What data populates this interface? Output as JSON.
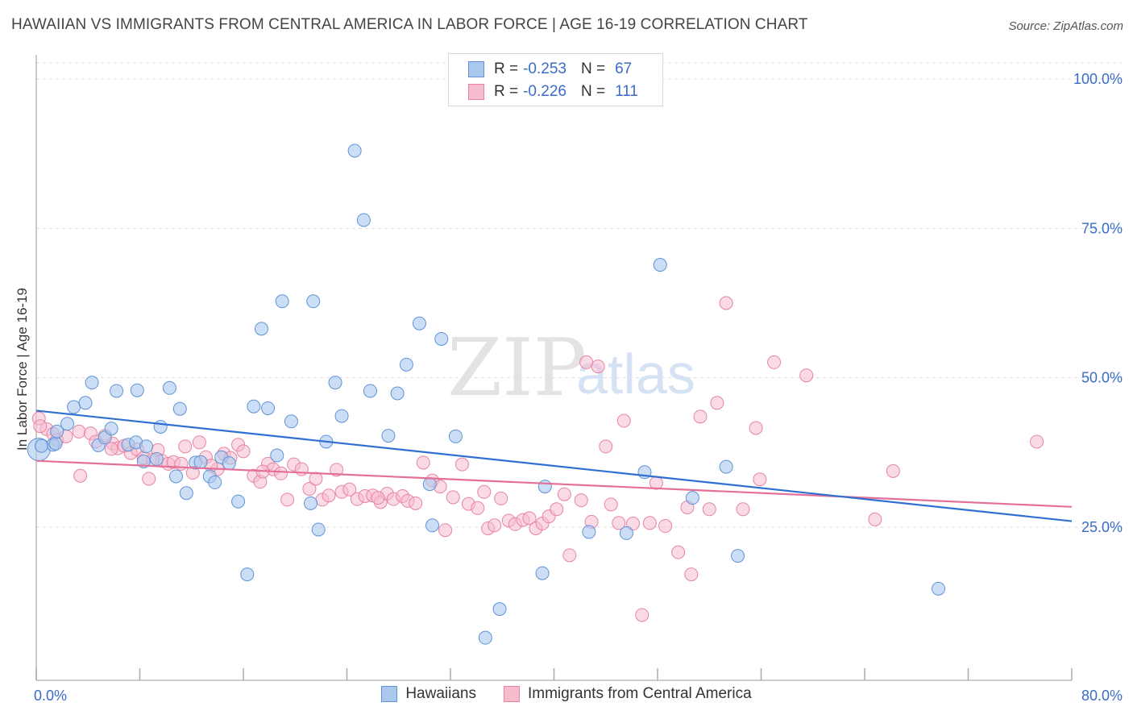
{
  "title": "HAWAIIAN VS IMMIGRANTS FROM CENTRAL AMERICA IN LABOR FORCE | AGE 16-19 CORRELATION CHART",
  "source": "Source: ZipAtlas.com",
  "watermark": {
    "part1": "ZIP",
    "part2": "atlas"
  },
  "legend": {
    "rows": [
      {
        "r_label": "R =",
        "r_value": "-0.253",
        "n_label": "N =",
        "n_value": "67"
      },
      {
        "r_label": "R =",
        "r_value": "-0.226",
        "n_label": "N =",
        "n_value": "111"
      }
    ]
  },
  "bottom_legend": {
    "series1": "Hawaiians",
    "series2": "Immigrants from Central America"
  },
  "chart_data": {
    "type": "scatter",
    "ylabel": "In Labor Force | Age 16-19",
    "xlabel": "",
    "xlim": [
      0,
      80
    ],
    "ylim": [
      0,
      105
    ],
    "x_tick_labels": [
      "0.0%",
      "80.0%"
    ],
    "y_tick_values": [
      25,
      50,
      75,
      100
    ],
    "y_tick_labels": [
      "25.0%",
      "50.0%",
      "75.0%",
      "100.0%"
    ],
    "grid": true,
    "legend_position": "top-center",
    "colors": {
      "s1_fill": "#aac8ee",
      "s1_stroke": "#5f93d6",
      "s1_line": "#2e6fd1",
      "s2_fill": "#f6bccd",
      "s2_stroke": "#e8849f",
      "s2_line": "#e4709a",
      "tick_label": "#3a6cc7",
      "grid": "#dcdcdc"
    },
    "series": [
      {
        "name": "Hawaiians",
        "trend": {
          "x1": 0,
          "y1": 44.5,
          "x2": 80,
          "y2": 26.0
        },
        "points": [
          [
            0.2,
            38.0
          ],
          [
            1.3,
            38.8
          ],
          [
            1.5,
            39.0
          ],
          [
            1.6,
            41.0
          ],
          [
            2.4,
            42.3
          ],
          [
            2.9,
            45.1
          ],
          [
            3.8,
            45.8
          ],
          [
            4.3,
            49.2
          ],
          [
            4.8,
            38.7
          ],
          [
            5.3,
            40.0
          ],
          [
            5.8,
            41.5
          ],
          [
            6.2,
            47.8
          ],
          [
            7.1,
            38.8
          ],
          [
            7.7,
            39.2
          ],
          [
            7.8,
            47.9
          ],
          [
            8.3,
            36.0
          ],
          [
            8.5,
            38.5
          ],
          [
            9.3,
            36.4
          ],
          [
            9.6,
            41.8
          ],
          [
            10.3,
            48.3
          ],
          [
            10.8,
            33.5
          ],
          [
            11.1,
            44.8
          ],
          [
            11.6,
            30.7
          ],
          [
            12.3,
            35.8
          ],
          [
            12.7,
            35.9
          ],
          [
            13.4,
            33.5
          ],
          [
            13.8,
            32.5
          ],
          [
            14.3,
            36.7
          ],
          [
            14.9,
            35.7
          ],
          [
            15.6,
            29.3
          ],
          [
            16.3,
            17.1
          ],
          [
            16.8,
            45.2
          ],
          [
            17.4,
            58.2
          ],
          [
            17.9,
            44.9
          ],
          [
            18.6,
            37.0
          ],
          [
            19.0,
            62.8
          ],
          [
            19.7,
            42.7
          ],
          [
            21.4,
            62.8
          ],
          [
            21.2,
            29.0
          ],
          [
            21.8,
            24.6
          ],
          [
            22.4,
            39.3
          ],
          [
            23.1,
            49.2
          ],
          [
            23.6,
            43.6
          ],
          [
            24.6,
            88.0
          ],
          [
            25.3,
            76.4
          ],
          [
            25.8,
            47.8
          ],
          [
            27.2,
            40.3
          ],
          [
            27.9,
            47.4
          ],
          [
            28.6,
            52.2
          ],
          [
            29.6,
            59.1
          ],
          [
            30.4,
            32.2
          ],
          [
            30.6,
            25.3
          ],
          [
            31.3,
            56.5
          ],
          [
            32.4,
            40.2
          ],
          [
            34.7,
            6.5
          ],
          [
            35.8,
            11.3
          ],
          [
            39.1,
            17.3
          ],
          [
            39.3,
            31.8
          ],
          [
            42.7,
            24.2
          ],
          [
            45.6,
            24.0
          ],
          [
            47.0,
            34.2
          ],
          [
            48.2,
            68.9
          ],
          [
            50.7,
            29.9
          ],
          [
            53.3,
            35.1
          ],
          [
            54.2,
            20.2
          ],
          [
            69.7,
            14.7
          ],
          [
            0.4,
            38.6
          ]
        ]
      },
      {
        "name": "Immigrants from Central America",
        "trend": {
          "x1": 0,
          "y1": 36.1,
          "x2": 80,
          "y2": 28.4
        },
        "points": [
          [
            0.2,
            43.2
          ],
          [
            0.8,
            41.4
          ],
          [
            1.3,
            40.6
          ],
          [
            1.6,
            39.6
          ],
          [
            2.3,
            40.2
          ],
          [
            3.3,
            41.0
          ],
          [
            3.4,
            33.6
          ],
          [
            4.2,
            40.7
          ],
          [
            4.6,
            39.3
          ],
          [
            5.3,
            40.3
          ],
          [
            5.9,
            39.0
          ],
          [
            6.3,
            38.2
          ],
          [
            6.8,
            38.6
          ],
          [
            7.3,
            37.4
          ],
          [
            7.8,
            38.0
          ],
          [
            8.3,
            36.6
          ],
          [
            8.7,
            33.1
          ],
          [
            9.4,
            37.9
          ],
          [
            9.7,
            36.1
          ],
          [
            10.2,
            35.6
          ],
          [
            10.6,
            35.9
          ],
          [
            11.2,
            35.6
          ],
          [
            11.5,
            38.5
          ],
          [
            12.1,
            34.1
          ],
          [
            12.6,
            39.2
          ],
          [
            13.1,
            36.7
          ],
          [
            14.0,
            34.7
          ],
          [
            14.5,
            37.3
          ],
          [
            15.0,
            36.6
          ],
          [
            15.6,
            38.8
          ],
          [
            16.0,
            37.7
          ],
          [
            16.8,
            33.6
          ],
          [
            17.3,
            32.6
          ],
          [
            17.9,
            35.6
          ],
          [
            18.3,
            34.7
          ],
          [
            18.9,
            34.0
          ],
          [
            19.4,
            29.6
          ],
          [
            19.9,
            35.5
          ],
          [
            20.5,
            34.7
          ],
          [
            21.1,
            31.4
          ],
          [
            21.6,
            33.1
          ],
          [
            22.1,
            29.6
          ],
          [
            22.6,
            30.3
          ],
          [
            23.2,
            34.6
          ],
          [
            23.6,
            30.9
          ],
          [
            24.2,
            31.3
          ],
          [
            24.8,
            29.7
          ],
          [
            25.4,
            30.2
          ],
          [
            26.0,
            30.3
          ],
          [
            26.6,
            29.2
          ],
          [
            27.1,
            30.6
          ],
          [
            27.6,
            29.7
          ],
          [
            28.3,
            30.2
          ],
          [
            28.7,
            29.4
          ],
          [
            29.3,
            29.0
          ],
          [
            29.9,
            35.8
          ],
          [
            30.6,
            32.8
          ],
          [
            31.2,
            31.8
          ],
          [
            31.6,
            24.5
          ],
          [
            32.2,
            30.0
          ],
          [
            32.9,
            35.5
          ],
          [
            33.4,
            28.9
          ],
          [
            34.1,
            28.2
          ],
          [
            34.6,
            30.9
          ],
          [
            34.9,
            24.8
          ],
          [
            35.4,
            25.3
          ],
          [
            35.9,
            29.8
          ],
          [
            36.5,
            26.1
          ],
          [
            37.0,
            25.5
          ],
          [
            37.6,
            26.2
          ],
          [
            38.1,
            26.5
          ],
          [
            38.6,
            24.8
          ],
          [
            39.1,
            25.6
          ],
          [
            39.6,
            26.8
          ],
          [
            40.2,
            28.0
          ],
          [
            40.8,
            30.5
          ],
          [
            41.2,
            20.3
          ],
          [
            42.1,
            29.5
          ],
          [
            42.5,
            52.6
          ],
          [
            42.9,
            25.9
          ],
          [
            43.4,
            51.9
          ],
          [
            44.0,
            38.5
          ],
          [
            44.4,
            28.8
          ],
          [
            45.0,
            25.7
          ],
          [
            45.4,
            42.8
          ],
          [
            46.1,
            25.6
          ],
          [
            46.8,
            10.3
          ],
          [
            47.4,
            25.7
          ],
          [
            47.9,
            32.4
          ],
          [
            48.6,
            25.2
          ],
          [
            49.6,
            20.8
          ],
          [
            50.3,
            28.3
          ],
          [
            50.6,
            17.1
          ],
          [
            51.3,
            43.5
          ],
          [
            52.0,
            28.0
          ],
          [
            52.6,
            45.8
          ],
          [
            53.3,
            62.5
          ],
          [
            54.6,
            28.0
          ],
          [
            55.6,
            41.6
          ],
          [
            55.9,
            33.0
          ],
          [
            57.0,
            52.6
          ],
          [
            59.5,
            50.4
          ],
          [
            64.8,
            26.3
          ],
          [
            66.2,
            34.4
          ],
          [
            77.3,
            39.3
          ],
          [
            0.3,
            41.9
          ],
          [
            5.8,
            38.1
          ],
          [
            9.0,
            36.3
          ],
          [
            13.5,
            35.3
          ],
          [
            17.5,
            34.3
          ],
          [
            26.4,
            29.9
          ]
        ]
      }
    ]
  }
}
